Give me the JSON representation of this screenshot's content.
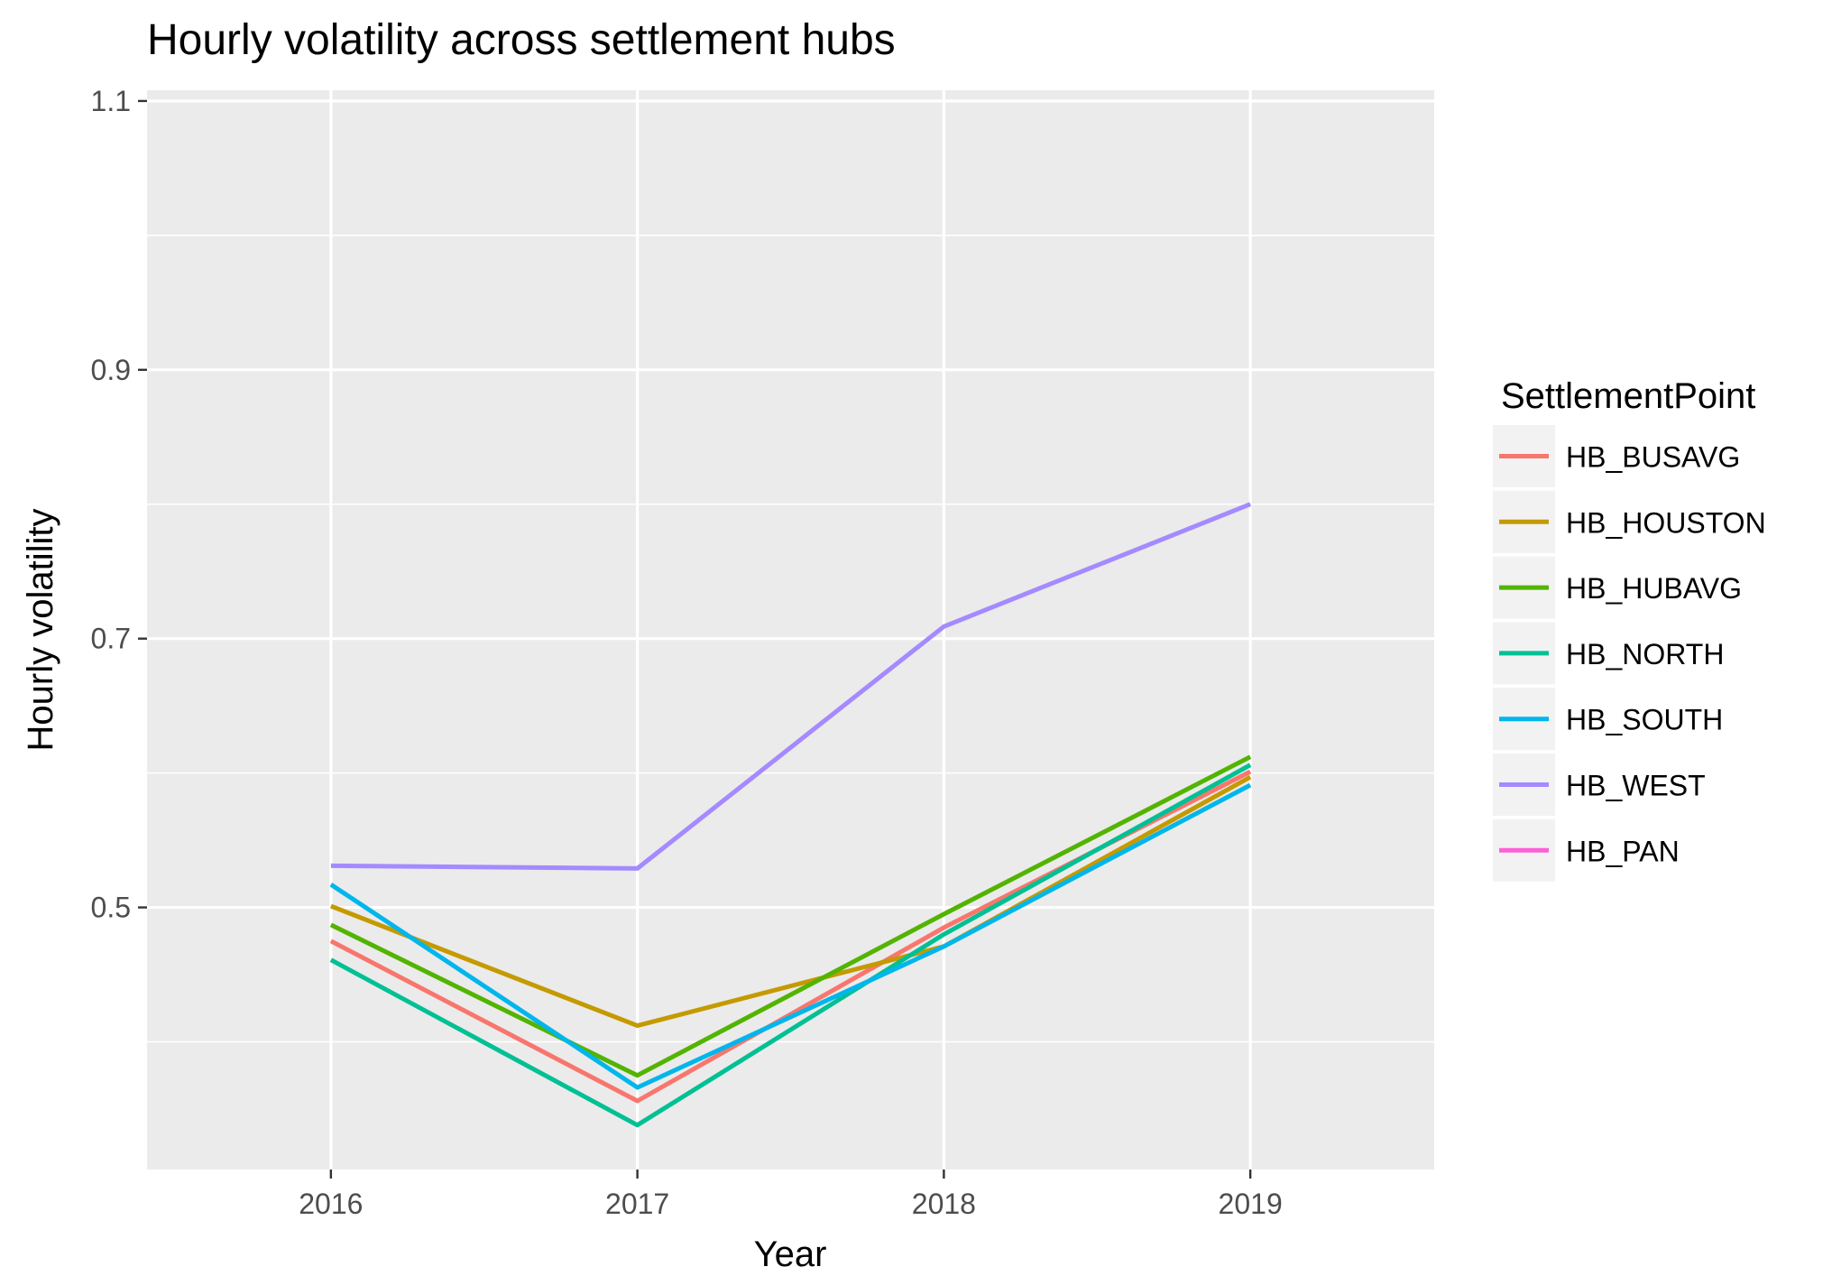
{
  "chart_data": {
    "type": "line",
    "title": "Hourly volatility across settlement hubs",
    "xlabel": "Year",
    "ylabel": "Hourly volatility",
    "x": [
      2016,
      2017,
      2018,
      2019
    ],
    "xlim": [
      2015.4,
      2019.6
    ],
    "ylim": [
      0.305,
      1.108
    ],
    "y_ticks": [
      0.5,
      0.7,
      0.9,
      1.1
    ],
    "y_tick_labels": [
      "0.5",
      "0.7",
      "0.9",
      "1.1"
    ],
    "x_tick_labels": [
      "2016",
      "2017",
      "2018",
      "2019"
    ],
    "grid": true,
    "legend": {
      "title": "SettlementPoint",
      "placement": "right"
    },
    "series": [
      {
        "name": "HB_BUSAVG",
        "color": "#F8766D",
        "values": [
          0.475,
          0.356,
          0.485,
          0.601
        ]
      },
      {
        "name": "HB_HOUSTON",
        "color": "#C49A00",
        "values": [
          0.501,
          0.412,
          0.471,
          0.597
        ]
      },
      {
        "name": "HB_HUBAVG",
        "color": "#53B400",
        "values": [
          0.487,
          0.375,
          0.495,
          0.612
        ]
      },
      {
        "name": "HB_NORTH",
        "color": "#00C094",
        "values": [
          0.461,
          0.338,
          0.48,
          0.606
        ]
      },
      {
        "name": "HB_SOUTH",
        "color": "#00B6EB",
        "values": [
          0.517,
          0.366,
          0.471,
          0.591
        ]
      },
      {
        "name": "HB_WEST",
        "color": "#A58AFF",
        "values": [
          0.531,
          0.529,
          0.709,
          0.8
        ]
      },
      {
        "name": "HB_PAN",
        "color": "#FB61D7",
        "values": [
          null,
          null,
          null,
          null
        ]
      }
    ],
    "colors": {
      "panel_background": "#EBEBEB",
      "grid_major": "#FFFFFF",
      "text": "#000000",
      "tick_text": "#4D4D4D",
      "legend_key_background": "#F2F2F2"
    }
  }
}
